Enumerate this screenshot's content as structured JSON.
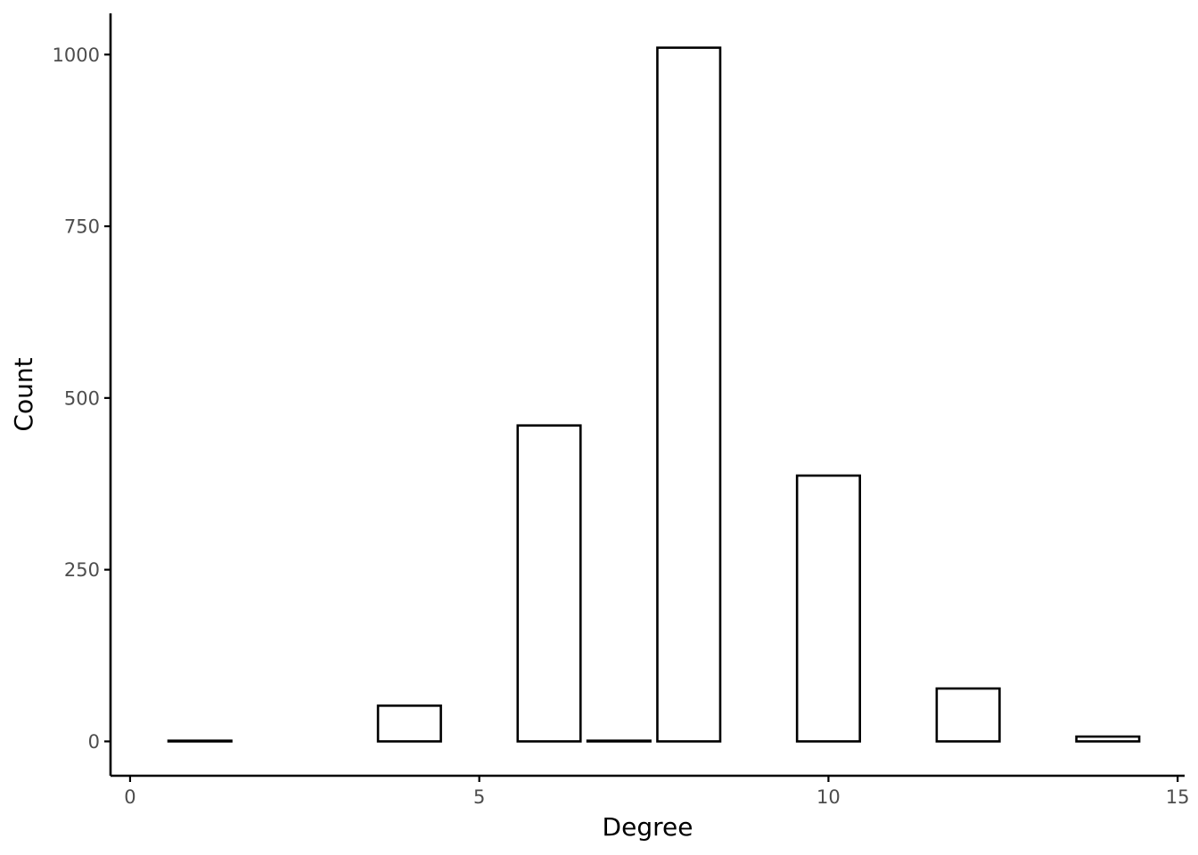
{
  "chart_data": {
    "type": "bar",
    "title": "",
    "xlabel": "Degree",
    "ylabel": "Count",
    "x": [
      1,
      4,
      6,
      7,
      8,
      10,
      12,
      14
    ],
    "values": [
      1,
      52,
      460,
      1,
      1010,
      387,
      77,
      7
    ],
    "bar_width": 0.9,
    "xlim": [
      -0.28,
      15.1
    ],
    "ylim": [
      -50,
      1060
    ],
    "xticks": [
      0,
      5,
      10,
      15
    ],
    "xtick_labels": [
      "0",
      "5",
      "10",
      "15"
    ],
    "yticks": [
      0,
      250,
      500,
      750,
      1000
    ],
    "ytick_labels": [
      "0",
      "250",
      "500",
      "750",
      "1000"
    ],
    "grid": false,
    "legend": "none",
    "bar_fill": "#ffffff",
    "bar_outline": "#000000"
  }
}
